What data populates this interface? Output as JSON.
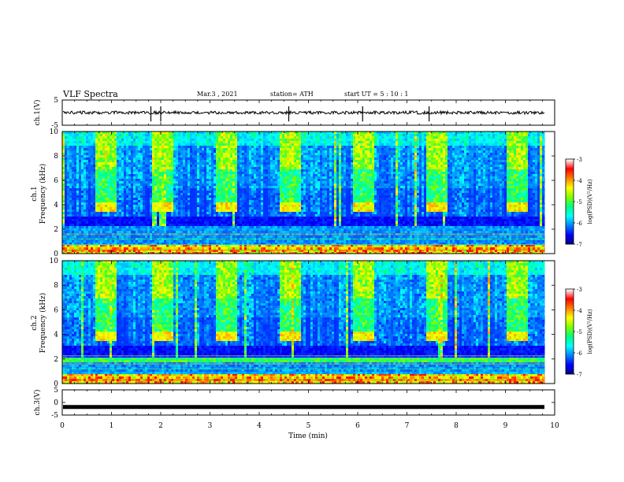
{
  "header": {
    "title": "VLF Spectra",
    "date": "Mar.3 , 2021",
    "station": "station= ATH",
    "start": "start UT = 5 : 10 : 1"
  },
  "colors": {
    "spectrum_scale": [
      "#00007a",
      "#0000ff",
      "#0080ff",
      "#00ffff",
      "#00ff80",
      "#80ff00",
      "#ffff00",
      "#ff8000",
      "#ff0000",
      "#ffffff"
    ]
  },
  "chart_data": [
    {
      "type": "line",
      "ylabel": "ch.1(V)",
      "ylim": [
        -5,
        5
      ],
      "yticks": [
        "5",
        "-5"
      ],
      "description_baseline": 0,
      "spikes_min": [
        1.8,
        2.0,
        4.6,
        6.1,
        7.45
      ]
    },
    {
      "type": "heatmap",
      "ylabel": "ch.1\nFrequency (kHz)",
      "ylabel_lines": [
        "ch.1",
        "Frequency (kHz)"
      ],
      "ylim": [
        0,
        10
      ],
      "yticks": [
        "0",
        "2",
        "4",
        "6",
        "8",
        "10"
      ],
      "colorbar": {
        "label": "log(PSD)(V²/Hz)",
        "range": [
          -7,
          -3
        ],
        "ticks": [
          "-3",
          "-4",
          "-5",
          "-6",
          "-7"
        ]
      },
      "burst_centers_min": [
        0.85,
        2.0,
        3.3,
        4.6,
        6.1,
        7.6,
        9.2
      ],
      "burst_band_khz": [
        3.5,
        4.3
      ]
    },
    {
      "type": "heatmap",
      "ylabel": "ch.2\nFrequency (kHz)",
      "ylabel_lines": [
        "ch.2",
        "Frequency (kHz)"
      ],
      "ylim": [
        0,
        10
      ],
      "yticks": [
        "0",
        "2",
        "4",
        "6",
        "8",
        "10"
      ],
      "colorbar": {
        "label": "log(PSD)(V²/Hz)",
        "range": [
          -7,
          -3
        ],
        "ticks": [
          "-3",
          "-4",
          "-5",
          "-6",
          "-7"
        ]
      },
      "burst_centers_min": [
        0.85,
        2.0,
        3.3,
        4.6,
        6.1,
        7.6,
        9.2
      ],
      "burst_band_khz": [
        3.5,
        4.3
      ]
    },
    {
      "type": "line",
      "ylabel": "ch.3(V)",
      "ylim": [
        -5,
        5
      ],
      "yticks": [
        "5",
        "0",
        "-5"
      ],
      "description_baseline": -1.8,
      "xlabel": "Time (min)",
      "xlim": [
        0,
        10
      ],
      "xticks": [
        "0",
        "1",
        "2",
        "3",
        "4",
        "5",
        "6",
        "7",
        "8",
        "9",
        "10"
      ],
      "data_end_min": 9.8
    }
  ]
}
